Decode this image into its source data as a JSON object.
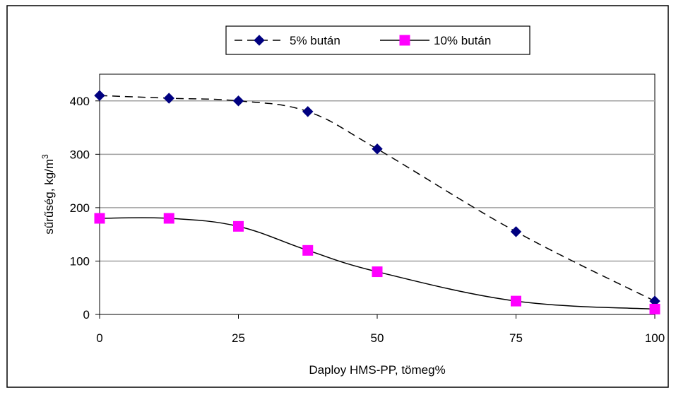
{
  "chart_data": {
    "type": "line",
    "xlabel": "Daploy HMS-PP, tömeg%",
    "ylabel": "sűrűség, kg/m",
    "ylabel_superscript": "3",
    "xlim": [
      0,
      100
    ],
    "ylim": [
      0,
      450
    ],
    "x_ticks": [
      "0",
      "25",
      "50",
      "75",
      "100"
    ],
    "y_ticks": [
      "0",
      "100",
      "200",
      "300",
      "400"
    ],
    "x_tick_values": [
      0,
      25,
      50,
      75,
      100
    ],
    "y_tick_values": [
      0,
      100,
      200,
      300,
      400
    ],
    "y_gridlines": true,
    "legend_position": "top",
    "series": [
      {
        "name": "5% bután",
        "color": "#000080",
        "line_style": "dashed",
        "marker": "diamond",
        "x": [
          0,
          12.5,
          25,
          37.5,
          50,
          75,
          100
        ],
        "y": [
          410,
          405,
          400,
          380,
          310,
          155,
          25
        ]
      },
      {
        "name": "10% bután",
        "color": "#ff00ff",
        "line_style": "solid",
        "marker": "square",
        "x": [
          0,
          12.5,
          25,
          37.5,
          50,
          75,
          100
        ],
        "y": [
          180,
          180,
          165,
          120,
          80,
          25,
          10
        ]
      }
    ]
  }
}
